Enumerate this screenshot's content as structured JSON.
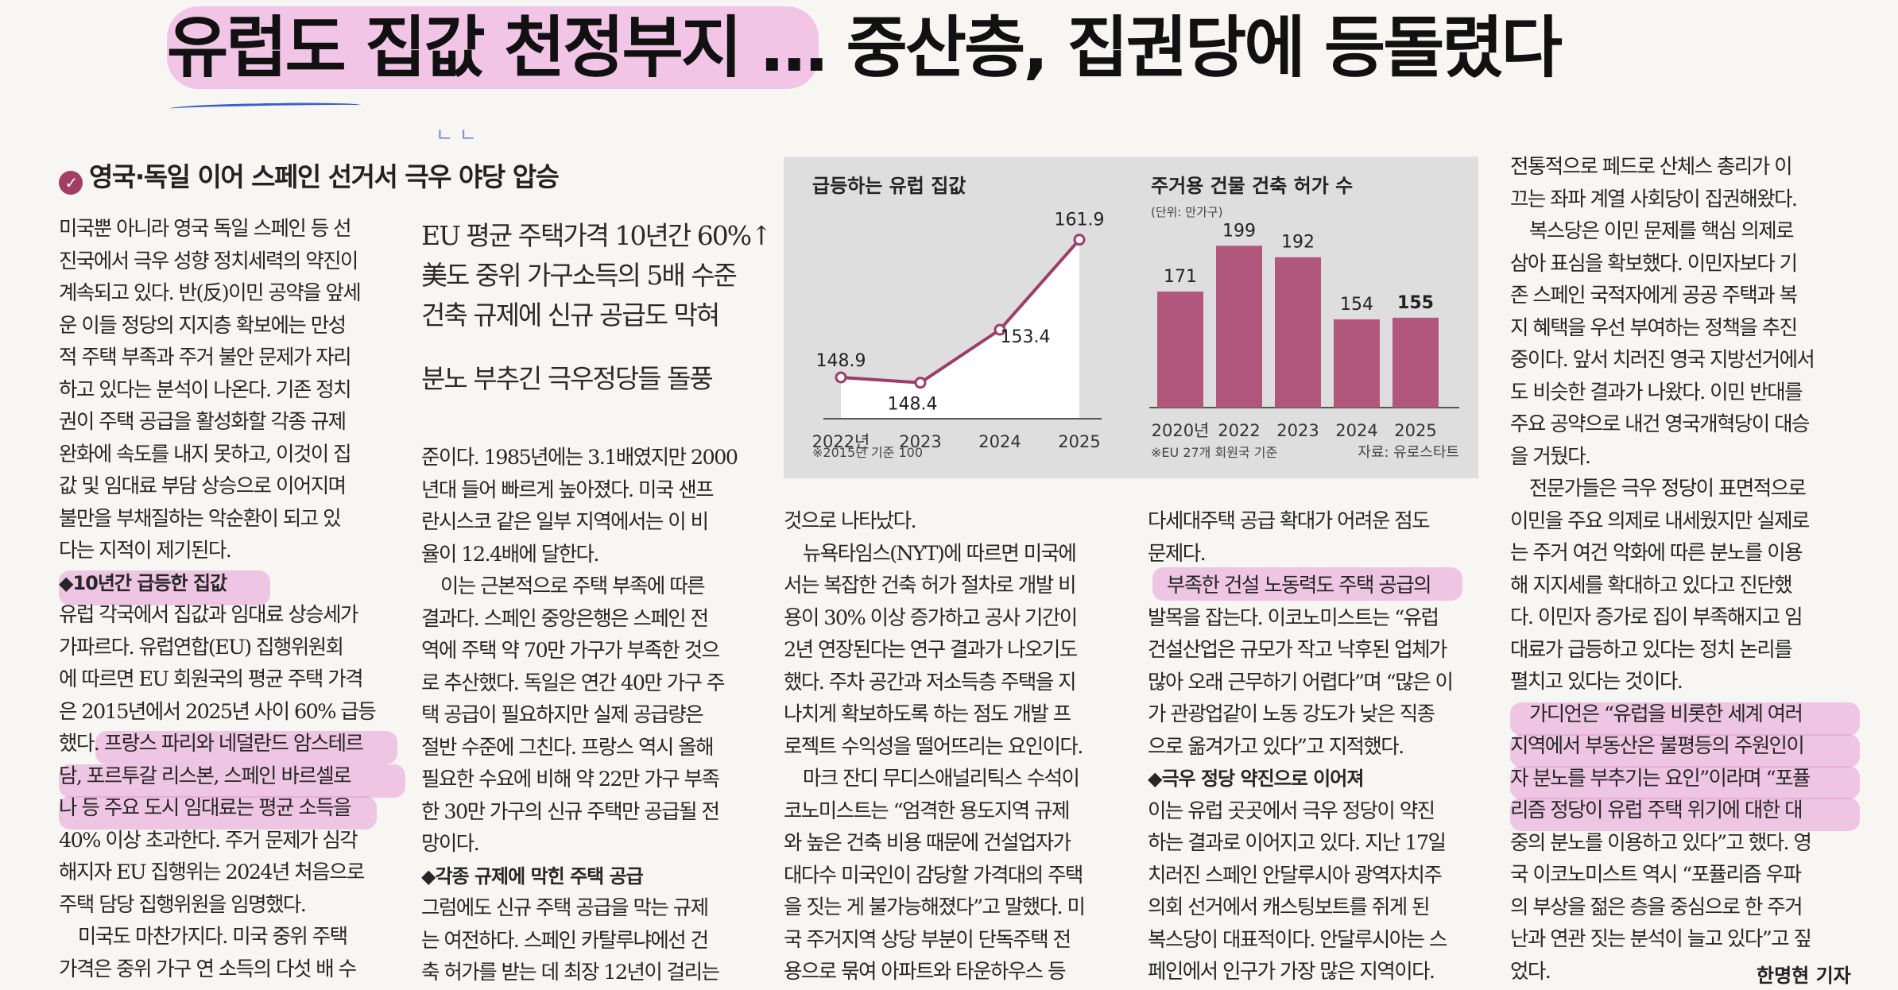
{
  "headline": "유럽도 집값 천정부지 … 중산층, 집권당에 등돌렸다",
  "subhead": "영국·독일 이어 스페인 선거서 극우 야당 압승",
  "box_titles": [
    "EU 평균 주택가격 10년간 60%↑",
    "美도 중위 가구소득의 5배 수준",
    "건축 규제에 신규 공급도 막혀",
    "분노 부추긴 극우정당들 돌풍"
  ],
  "columns": [
    {
      "lines": [
        "미국뿐 아니라 영국 독일 스페인 등 선",
        "진국에서 극우 성향 정치세력의 약진이",
        "계속되고 있다. 반(反)이민 공약을 앞세",
        "운 이들 정당의 지지층 확보에는 만성",
        "적 주택 부족과 주거 불안 문제가 자리",
        "하고 있다는 분석이 나온다. 기존 정치",
        "권이 주택 공급을 활성화할 각종 규제",
        "완화에 속도를 내지 못하고, 이것이 집",
        "값 및 임대료 부담 상승으로 이어지며",
        "불만을 부채질하는 악순환이 되고 있",
        "다는 지적이 제기된다.",
        "◆10년간 급등한 집값",
        "유럽 각국에서 집값과 임대료 상승세가",
        "가파르다. 유럽연합(EU) 집행위원회",
        "에 따르면 EU 회원국의 평균 주택 가격",
        "은 2015년에서 2025년 사이 60% 급등",
        "했다. 프랑스 파리와 네덜란드 암스테르",
        "담, 포르투갈 리스본, 스페인 바르셀로",
        "나 등 주요 도시 임대료는 평균 소득을",
        "40% 이상 초과한다. 주거 문제가 심각",
        "해지자 EU 집행위는 2024년 처음으로",
        "주택 담당 집행위원을 임명했다.",
        "　미국도 마찬가지다. 미국 중위 주택",
        "가격은 중위 가구 연 소득의 다섯 배 수"
      ]
    },
    {
      "lines": [
        "준이다. 1985년에는 3.1배였지만 2000",
        "년대 들어 빠르게 높아졌다. 미국 샌프",
        "란시스코 같은 일부 지역에서는 이 비",
        "율이 12.4배에 달한다.",
        "　이는 근본적으로 주택 부족에 따른",
        "결과다. 스페인 중앙은행은 스페인 전",
        "역에 주택 약 70만 가구가 부족한 것으",
        "로 추산했다. 독일은 연간 40만 가구 주",
        "택 공급이 필요하지만 실제 공급량은",
        "절반 수준에 그친다. 프랑스 역시 올해",
        "필요한 수요에 비해 약 22만 가구 부족",
        "한 30만 가구의 신규 주택만 공급될 전",
        "망이다.",
        "◆각종 규제에 막힌 주택 공급",
        "그럼에도 신규 주택 공급을 막는 규제",
        "는 여전하다. 스페인 카탈루냐에선 건",
        "축 허가를 받는 데 최장 12년이 걸리는"
      ]
    },
    {
      "lines": [
        "것으로 나타났다.",
        "　뉴욕타임스(NYT)에 따르면 미국에",
        "서는 복잡한 건축 허가 절차로 개발 비",
        "용이 30% 이상 증가하고 공사 기간이",
        "2년 연장된다는 연구 결과가 나오기도",
        "했다. 주차 공간과 저소득층 주택을 지",
        "나치게 확보하도록 하는 점도 개발 프",
        "로젝트 수익성을 떨어뜨리는 요인이다.",
        "　마크 잔디 무디스애널리틱스 수석이",
        "코노미스트는 “엄격한 용도지역 규제",
        "와 높은 건축 비용 때문에 건설업자가",
        "대다수 미국인이 감당할 가격대의 주택",
        "을 짓는 게 불가능해졌다”고 말했다. 미",
        "국 주거지역 상당 부분이 단독주택 전",
        "용으로 묶여 아파트와 타운하우스 등"
      ]
    },
    {
      "lines": [
        "다세대주택 공급 확대가 어려운 점도",
        "문제다.",
        "　부족한 건설 노동력도 주택 공급의",
        "발목을 잡는다. 이코노미스트는 “유럽",
        "건설산업은 규모가 작고 낙후된 업체가",
        "많아 오래 근무하기 어렵다”며 “많은 이",
        "가 관광업같이 노동 강도가 낮은 직종",
        "으로 옮겨가고 있다”고 지적했다.",
        "◆극우 정당 약진으로 이어져",
        "이는 유럽 곳곳에서 극우 정당이 약진",
        "하는 결과로 이어지고 있다. 지난 17일",
        "치러진 스페인 안달루시아 광역자치주",
        "의회 선거에서 캐스팅보트를 쥐게 된",
        "복스당이 대표적이다. 안달루시아는 스",
        "페인에서 인구가 가장 많은 지역이다."
      ]
    },
    {
      "lines": [
        "전통적으로 페드로 산체스 총리가 이",
        "끄는 좌파 계열 사회당이 집권해왔다.",
        "　복스당은 이민 문제를 핵심 의제로",
        "삼아 표심을 확보했다. 이민자보다 기",
        "존 스페인 국적자에게 공공 주택과 복",
        "지 혜택을 우선 부여하는 정책을 추진",
        "중이다. 앞서 치러진 영국 지방선거에서",
        "도 비슷한 결과가 나왔다. 이민 반대를",
        "주요 공약으로 내건 영국개혁당이 대승",
        "을 거뒀다.",
        "　전문가들은 극우 정당이 표면적으로",
        "이민을 주요 의제로 내세웠지만 실제로",
        "는 주거 여건 악화에 따른 분노를 이용",
        "해 지지세를 확대하고 있다고 진단했",
        "다. 이민자 증가로 집이 부족해지고 임",
        "대료가 급등하고 있다는 정치 논리를",
        "펼치고 있다는 것이다.",
        "　가디언은 “유럽을 비롯한 세계 여러",
        "지역에서 부동산은 불평등의 주원인이",
        "자 분노를 부추기는 요인”이라며 “포퓰",
        "리즘 정당이 유럽 주택 위기에 대한 대",
        "중의 분노를 이용하고 있다”고 했다. 영",
        "국 이코노미스트 역시 “포퓰리즘 우파",
        "의 부상을 젊은 층을 중심으로 한 주거",
        "난과 연관 짓는 분석이 늘고 있다”고 짚",
        "었다."
      ]
    }
  ],
  "byline": "한명현 기자",
  "chart_data": [
    {
      "type": "line",
      "title": "급등하는 유럽 집값",
      "categories": [
        "2022년",
        "2023",
        "2024",
        "2025"
      ],
      "values": [
        148.9,
        148.4,
        153.4,
        161.9
      ],
      "value_labels": [
        "148.9",
        "148.4",
        "153.4",
        "161.9"
      ],
      "footnote": "※2015년 기준 100",
      "ylim": [
        145,
        163
      ],
      "series_color": "#9e3d69"
    },
    {
      "type": "bar",
      "title": "주거용 건물 건축 허가 수",
      "unit": "(단위: 만가구)",
      "categories": [
        "2020년",
        "2022",
        "2023",
        "2024",
        "2025"
      ],
      "values": [
        171,
        199,
        192,
        154,
        155
      ],
      "value_labels": [
        "171",
        "199",
        "192",
        "154",
        "155"
      ],
      "footnote": "※EU 27개 회원국 기준",
      "source": "자료: 유로스타트",
      "ylim": [
        100,
        205
      ],
      "bar_color": "#b2577c"
    }
  ]
}
